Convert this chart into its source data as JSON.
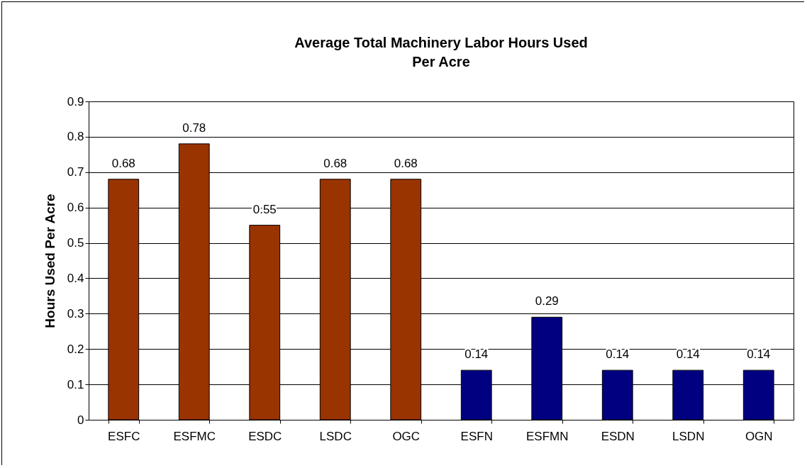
{
  "chart_data": {
    "type": "bar",
    "title": "Average Total Machinery Labor Hours Used\nPer Acre",
    "ylabel": "Hours Used Per Acre",
    "categories": [
      "ESFC",
      "ESFMC",
      "ESDC",
      "LSDC",
      "OGC",
      "ESFN",
      "ESFMN",
      "ESDN",
      "LSDN",
      "OGN"
    ],
    "values": [
      0.68,
      0.78,
      0.55,
      0.68,
      0.68,
      0.14,
      0.29,
      0.14,
      0.14,
      0.14
    ],
    "colors": [
      "#993300",
      "#993300",
      "#993300",
      "#993300",
      "#993300",
      "#000080",
      "#000080",
      "#000080",
      "#000080",
      "#000080"
    ],
    "ylim": [
      0,
      0.9
    ],
    "yticks": [
      0,
      0.1,
      0.2,
      0.3,
      0.4,
      0.5,
      0.6,
      0.7,
      0.8,
      0.9
    ],
    "grid": "y",
    "data_labels": true
  }
}
